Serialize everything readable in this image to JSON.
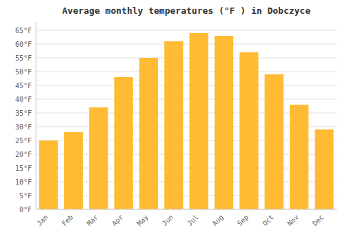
{
  "chart_data": {
    "type": "bar",
    "title": "Average monthly temperatures (°F ) in Dobczyce",
    "categories": [
      "Jan",
      "Feb",
      "Mar",
      "Apr",
      "May",
      "Jun",
      "Jul",
      "Aug",
      "Sep",
      "Oct",
      "Nov",
      "Dec"
    ],
    "values": [
      25,
      28,
      37,
      48,
      55,
      61,
      64,
      63,
      57,
      49,
      38,
      29
    ],
    "color": "#FFBB33",
    "ylim": [
      0,
      68
    ],
    "yticks": [
      {
        "value": 0,
        "label": "0°F"
      },
      {
        "value": 5,
        "label": "5°F"
      },
      {
        "value": 10,
        "label": "10°F"
      },
      {
        "value": 15,
        "label": "15°F"
      },
      {
        "value": 20,
        "label": "20°F"
      },
      {
        "value": 25,
        "label": "25°F"
      },
      {
        "value": 30,
        "label": "30°F"
      },
      {
        "value": 35,
        "label": "35°F"
      },
      {
        "value": 40,
        "label": "40°F"
      },
      {
        "value": 45,
        "label": "45°F"
      },
      {
        "value": 50,
        "label": "50°F"
      },
      {
        "value": 55,
        "label": "55°F"
      },
      {
        "value": 60,
        "label": "60°F"
      },
      {
        "value": 65,
        "label": "65°F"
      }
    ],
    "grid": true
  }
}
